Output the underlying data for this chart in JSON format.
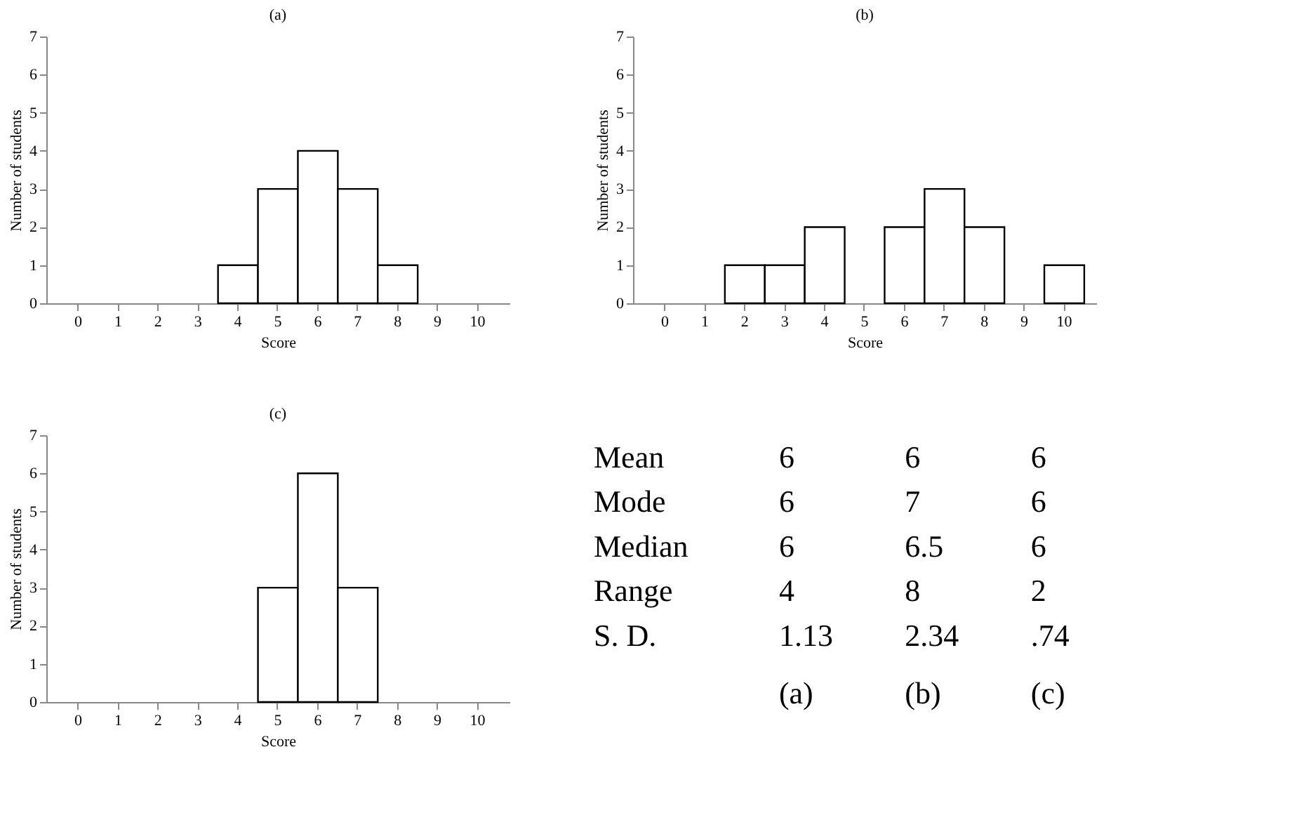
{
  "chart_data": [
    {
      "type": "bar",
      "title": "(a)",
      "xlabel": "Score",
      "ylabel": "Number of students",
      "categories": [
        "0",
        "1",
        "2",
        "3",
        "4",
        "5",
        "6",
        "7",
        "8",
        "9",
        "10"
      ],
      "values": [
        0,
        0,
        0,
        0,
        1,
        3,
        4,
        3,
        1,
        0,
        0
      ],
      "color": "#ffffff",
      "ylim": [
        0,
        7
      ],
      "yticks": [
        0,
        1,
        2,
        3,
        4,
        5,
        6,
        7
      ],
      "grid": false
    },
    {
      "type": "bar",
      "title": "(b)",
      "xlabel": "Score",
      "ylabel": "Number of students",
      "categories": [
        "0",
        "1",
        "2",
        "3",
        "4",
        "5",
        "6",
        "7",
        "8",
        "9",
        "10"
      ],
      "values": [
        0,
        0,
        1,
        1,
        2,
        0,
        2,
        3,
        2,
        0,
        1
      ],
      "color": "#ffffff",
      "ylim": [
        0,
        7
      ],
      "yticks": [
        0,
        1,
        2,
        3,
        4,
        5,
        6,
        7
      ],
      "grid": false
    },
    {
      "type": "bar",
      "title": "(c)",
      "xlabel": "Score",
      "ylabel": "Number of students",
      "categories": [
        "0",
        "1",
        "2",
        "3",
        "4",
        "5",
        "6",
        "7",
        "8",
        "9",
        "10"
      ],
      "values": [
        0,
        0,
        0,
        0,
        0,
        3,
        6,
        3,
        0,
        0,
        0
      ],
      "color": "#ffffff",
      "ylim": [
        0,
        7
      ],
      "yticks": [
        0,
        1,
        2,
        3,
        4,
        5,
        6,
        7
      ],
      "grid": false
    },
    {
      "type": "other",
      "annotations": [
        "Mean",
        "6",
        "6",
        "6",
        "Mode",
        "6",
        "7",
        "6",
        "Median",
        "6",
        "6.5",
        "6",
        "Range",
        "4",
        "8",
        "2",
        "S. D.",
        "1.13",
        "2.34",
        ".74",
        "(a)",
        "(b)",
        "(c)"
      ]
    }
  ]
}
